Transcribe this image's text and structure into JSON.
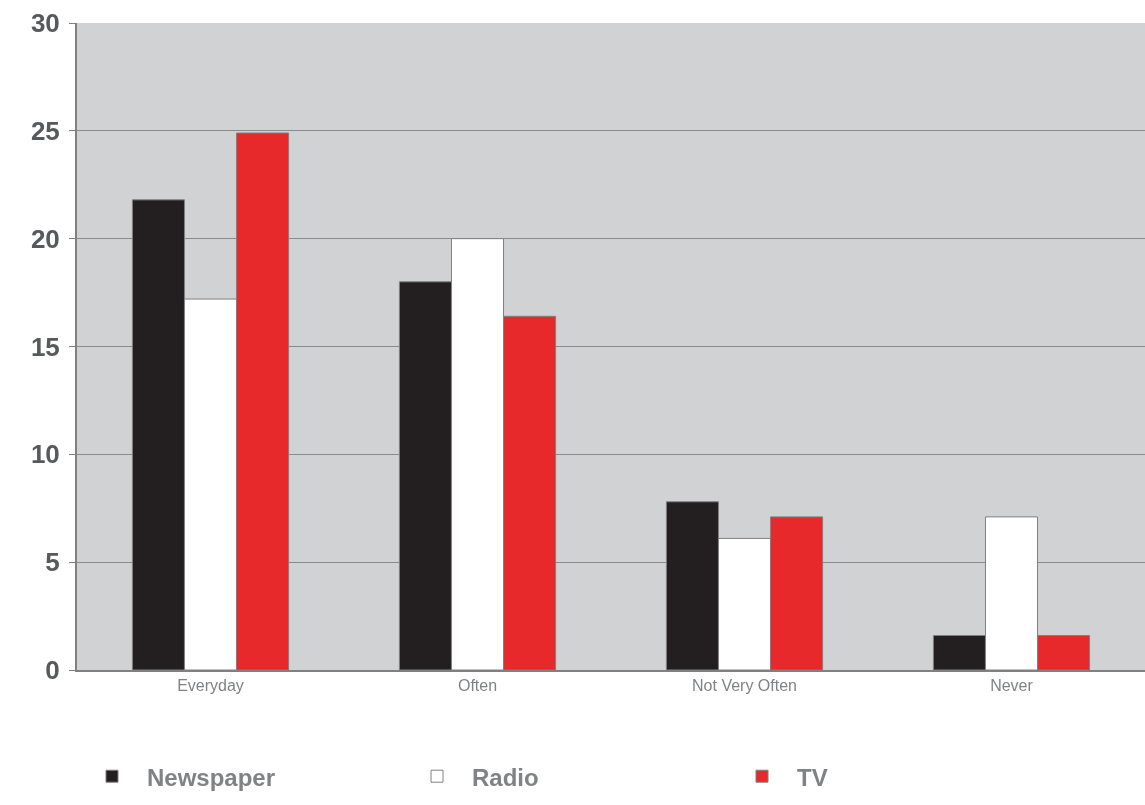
{
  "chart_data": {
    "type": "bar",
    "categories": [
      "Everyday",
      "Often",
      "Not Very Often",
      "Never"
    ],
    "series": [
      {
        "name": "Newspaper",
        "color": "#231f20",
        "values": [
          21.8,
          18.0,
          7.8,
          1.6
        ]
      },
      {
        "name": "Radio",
        "color": "#ffffff",
        "values": [
          17.2,
          20.0,
          6.1,
          7.1
        ]
      },
      {
        "name": "TV",
        "color": "#e8292c",
        "values": [
          24.9,
          16.4,
          7.1,
          1.6
        ]
      }
    ],
    "ylim": [
      0,
      30
    ],
    "yticks": [
      0,
      5,
      10,
      15,
      20,
      25,
      30
    ],
    "grid": "y",
    "legend": "bottom"
  }
}
